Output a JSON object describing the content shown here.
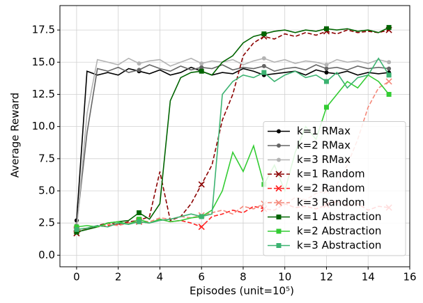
{
  "chart_data": {
    "type": "line",
    "xlabel": "Episodes (unit=10⁵)",
    "ylabel": "Average Reward",
    "x": [
      0,
      0.5,
      1,
      1.5,
      2,
      2.5,
      3,
      3.5,
      4,
      4.5,
      5,
      5.5,
      6,
      6.5,
      7,
      7.5,
      8,
      8.5,
      9,
      9.5,
      10,
      10.5,
      11,
      11.5,
      12,
      12.5,
      13,
      13.5,
      14,
      14.5,
      15
    ],
    "xlim": [
      -0.8,
      16
    ],
    "ylim": [
      -0.9,
      19.4
    ],
    "xticks": [
      0,
      2,
      4,
      6,
      8,
      10,
      12,
      14,
      16
    ],
    "yticks": [
      {
        "value": 0,
        "label": "0.0"
      },
      {
        "value": 2.5,
        "label": "2.5"
      },
      {
        "value": 5,
        "label": "5.0"
      },
      {
        "value": 7.5,
        "label": "7.5"
      },
      {
        "value": 10,
        "label": "10.0"
      },
      {
        "value": 12.5,
        "label": "12.5"
      },
      {
        "value": 15,
        "label": "15.0"
      },
      {
        "value": 17.5,
        "label": "17.5"
      }
    ],
    "grid": true,
    "legend": "lower right",
    "series": [
      {
        "name": "k=1 RMax",
        "color": "#000000",
        "marker": "o",
        "dash": false,
        "values": [
          2.7,
          14.3,
          14.0,
          14.2,
          14.0,
          14.5,
          14.3,
          14.1,
          14.4,
          14.0,
          14.2,
          14.6,
          14.3,
          14.0,
          14.2,
          14.1,
          14.5,
          14.3,
          14.0,
          14.1,
          14.2,
          14.3,
          14.0,
          14.4,
          14.2,
          14.1,
          14.3,
          14.0,
          14.2,
          14.1,
          14.2
        ]
      },
      {
        "name": "k=2 RMax",
        "color": "#666666",
        "marker": "o",
        "dash": false,
        "values": [
          2.3,
          9.5,
          14.5,
          14.3,
          14.6,
          14.2,
          14.4,
          14.8,
          14.5,
          14.3,
          14.7,
          14.4,
          14.6,
          14.5,
          14.8,
          14.4,
          14.6,
          14.5,
          14.7,
          14.3,
          14.5,
          14.6,
          14.4,
          14.8,
          14.5,
          14.6,
          14.4,
          14.7,
          14.5,
          14.6,
          14.5
        ]
      },
      {
        "name": "k=3 RMax",
        "color": "#b3b3b3",
        "marker": "o",
        "dash": false,
        "values": [
          2.0,
          11.0,
          15.2,
          15.0,
          14.8,
          15.3,
          14.9,
          15.1,
          15.2,
          14.7,
          15.0,
          15.3,
          14.9,
          15.1,
          15.0,
          15.2,
          14.8,
          15.1,
          15.3,
          15.0,
          15.2,
          14.9,
          15.1,
          15.0,
          14.8,
          15.2,
          15.0,
          15.1,
          14.9,
          15.2,
          15.0
        ]
      },
      {
        "name": "k=1 Random",
        "color": "#8b0000",
        "marker": "x",
        "dash": true,
        "values": [
          1.7,
          2.1,
          2.3,
          2.5,
          2.4,
          2.6,
          2.7,
          3.0,
          6.5,
          2.7,
          3.0,
          4.0,
          5.5,
          7.0,
          10.5,
          12.5,
          15.5,
          16.5,
          17.0,
          16.8,
          17.2,
          17.0,
          17.3,
          17.1,
          17.4,
          17.2,
          17.5,
          17.3,
          17.4,
          17.3,
          17.5
        ]
      },
      {
        "name": "k=2 Random",
        "color": "#ff2020",
        "marker": "x",
        "dash": true,
        "values": [
          2.0,
          2.1,
          2.2,
          2.3,
          2.4,
          2.5,
          2.6,
          2.5,
          2.8,
          2.6,
          2.7,
          2.5,
          2.2,
          3.0,
          3.2,
          3.5,
          3.3,
          3.8,
          3.6,
          3.5,
          4.0,
          3.7,
          3.8,
          3.6,
          3.9,
          4.2,
          3.8,
          4.0,
          3.5,
          3.8,
          3.7
        ]
      },
      {
        "name": "k=3 Random",
        "color": "#f4887a",
        "marker": "x",
        "dash": true,
        "values": [
          1.9,
          2.0,
          2.2,
          2.4,
          2.3,
          2.5,
          2.7,
          2.6,
          2.9,
          2.8,
          3.0,
          2.9,
          3.1,
          3.3,
          3.5,
          3.2,
          3.8,
          3.6,
          4.0,
          4.2,
          3.9,
          4.5,
          4.3,
          4.8,
          5.0,
          5.5,
          7.0,
          9.0,
          11.5,
          13.0,
          13.5
        ]
      },
      {
        "name": "k=1 Abstraction",
        "color": "#006400",
        "marker": "s",
        "dash": false,
        "values": [
          1.8,
          2.0,
          2.2,
          2.5,
          2.6,
          2.7,
          3.3,
          2.8,
          4.0,
          12.0,
          13.8,
          14.2,
          14.3,
          14.0,
          15.0,
          15.5,
          16.5,
          17.0,
          17.2,
          17.4,
          17.5,
          17.3,
          17.5,
          17.4,
          17.6,
          17.5,
          17.6,
          17.4,
          17.5,
          17.3,
          17.7
        ]
      },
      {
        "name": "k=2 Abstraction",
        "color": "#33cc33",
        "marker": "s",
        "dash": false,
        "values": [
          2.2,
          2.3,
          2.2,
          2.5,
          2.6,
          2.4,
          2.8,
          2.5,
          2.8,
          2.6,
          2.7,
          2.9,
          3.0,
          3.5,
          5.0,
          8.0,
          6.5,
          8.5,
          5.5,
          7.0,
          5.0,
          8.0,
          10.0,
          9.0,
          11.5,
          12.5,
          13.5,
          13.0,
          14.0,
          13.5,
          12.5
        ]
      },
      {
        "name": "k=3 Abstraction",
        "color": "#3cb371",
        "marker": "s",
        "dash": false,
        "values": [
          2.0,
          2.1,
          2.3,
          2.2,
          2.5,
          2.4,
          2.6,
          2.5,
          2.7,
          2.8,
          3.0,
          3.2,
          3.0,
          3.2,
          12.5,
          13.5,
          14.0,
          13.8,
          14.2,
          13.5,
          14.0,
          14.3,
          13.8,
          14.0,
          13.5,
          14.2,
          13.0,
          13.8,
          14.0,
          15.3,
          14.0
        ]
      }
    ]
  }
}
